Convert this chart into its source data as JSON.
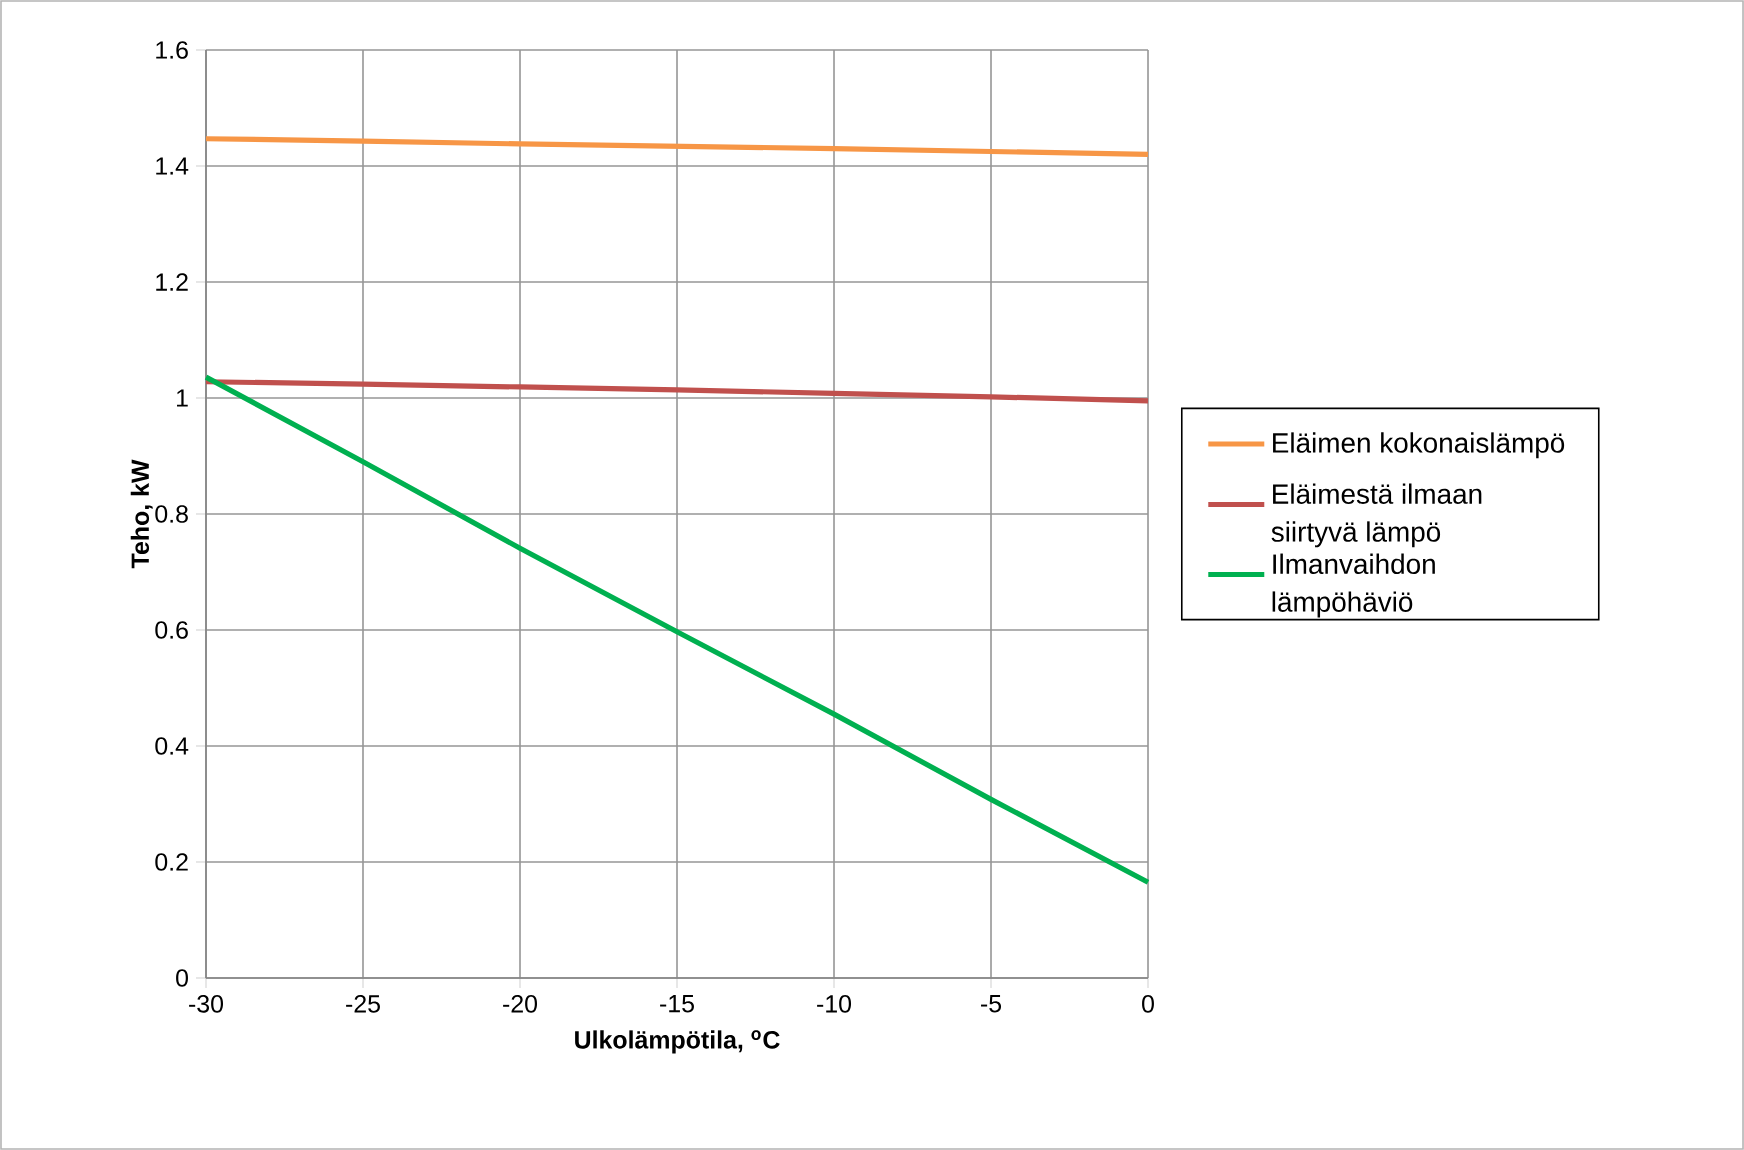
{
  "chart_data": {
    "type": "line",
    "xlabel": "Ulkolämpötila, $^{o}$C",
    "ylabel": "Teho, kW",
    "x": [
      -30,
      -25,
      -20,
      -15,
      -10,
      -5,
      0
    ],
    "series": [
      {
        "name": "Eläimen kokonaislämpö",
        "color": "#f79646",
        "values": [
          1.447,
          1.443,
          1.438,
          1.434,
          1.43,
          1.425,
          1.42
        ]
      },
      {
        "name": "Eläimestä ilmaan siirtyvä lämpö",
        "color": "#c0504d",
        "values": [
          1.028,
          1.024,
          1.019,
          1.014,
          1.008,
          1.002,
          0.995
        ]
      },
      {
        "name": "Ilmanvaihdon lämpöhäviö",
        "color": "#00b050",
        "values": [
          1.036,
          0.89,
          0.741,
          0.597,
          0.455,
          0.308,
          0.165
        ]
      }
    ],
    "xlim": [
      -30,
      0
    ],
    "xticks": [
      -30,
      -25,
      -20,
      -15,
      -10,
      -5,
      0
    ],
    "ylim": [
      0,
      1.6
    ],
    "yticks": [
      0,
      0.2,
      0.4,
      0.6,
      0.8,
      1,
      1.2,
      1.4,
      1.6
    ],
    "grid": true,
    "legend": "right",
    "marker": "none",
    "line_style": "solid"
  }
}
